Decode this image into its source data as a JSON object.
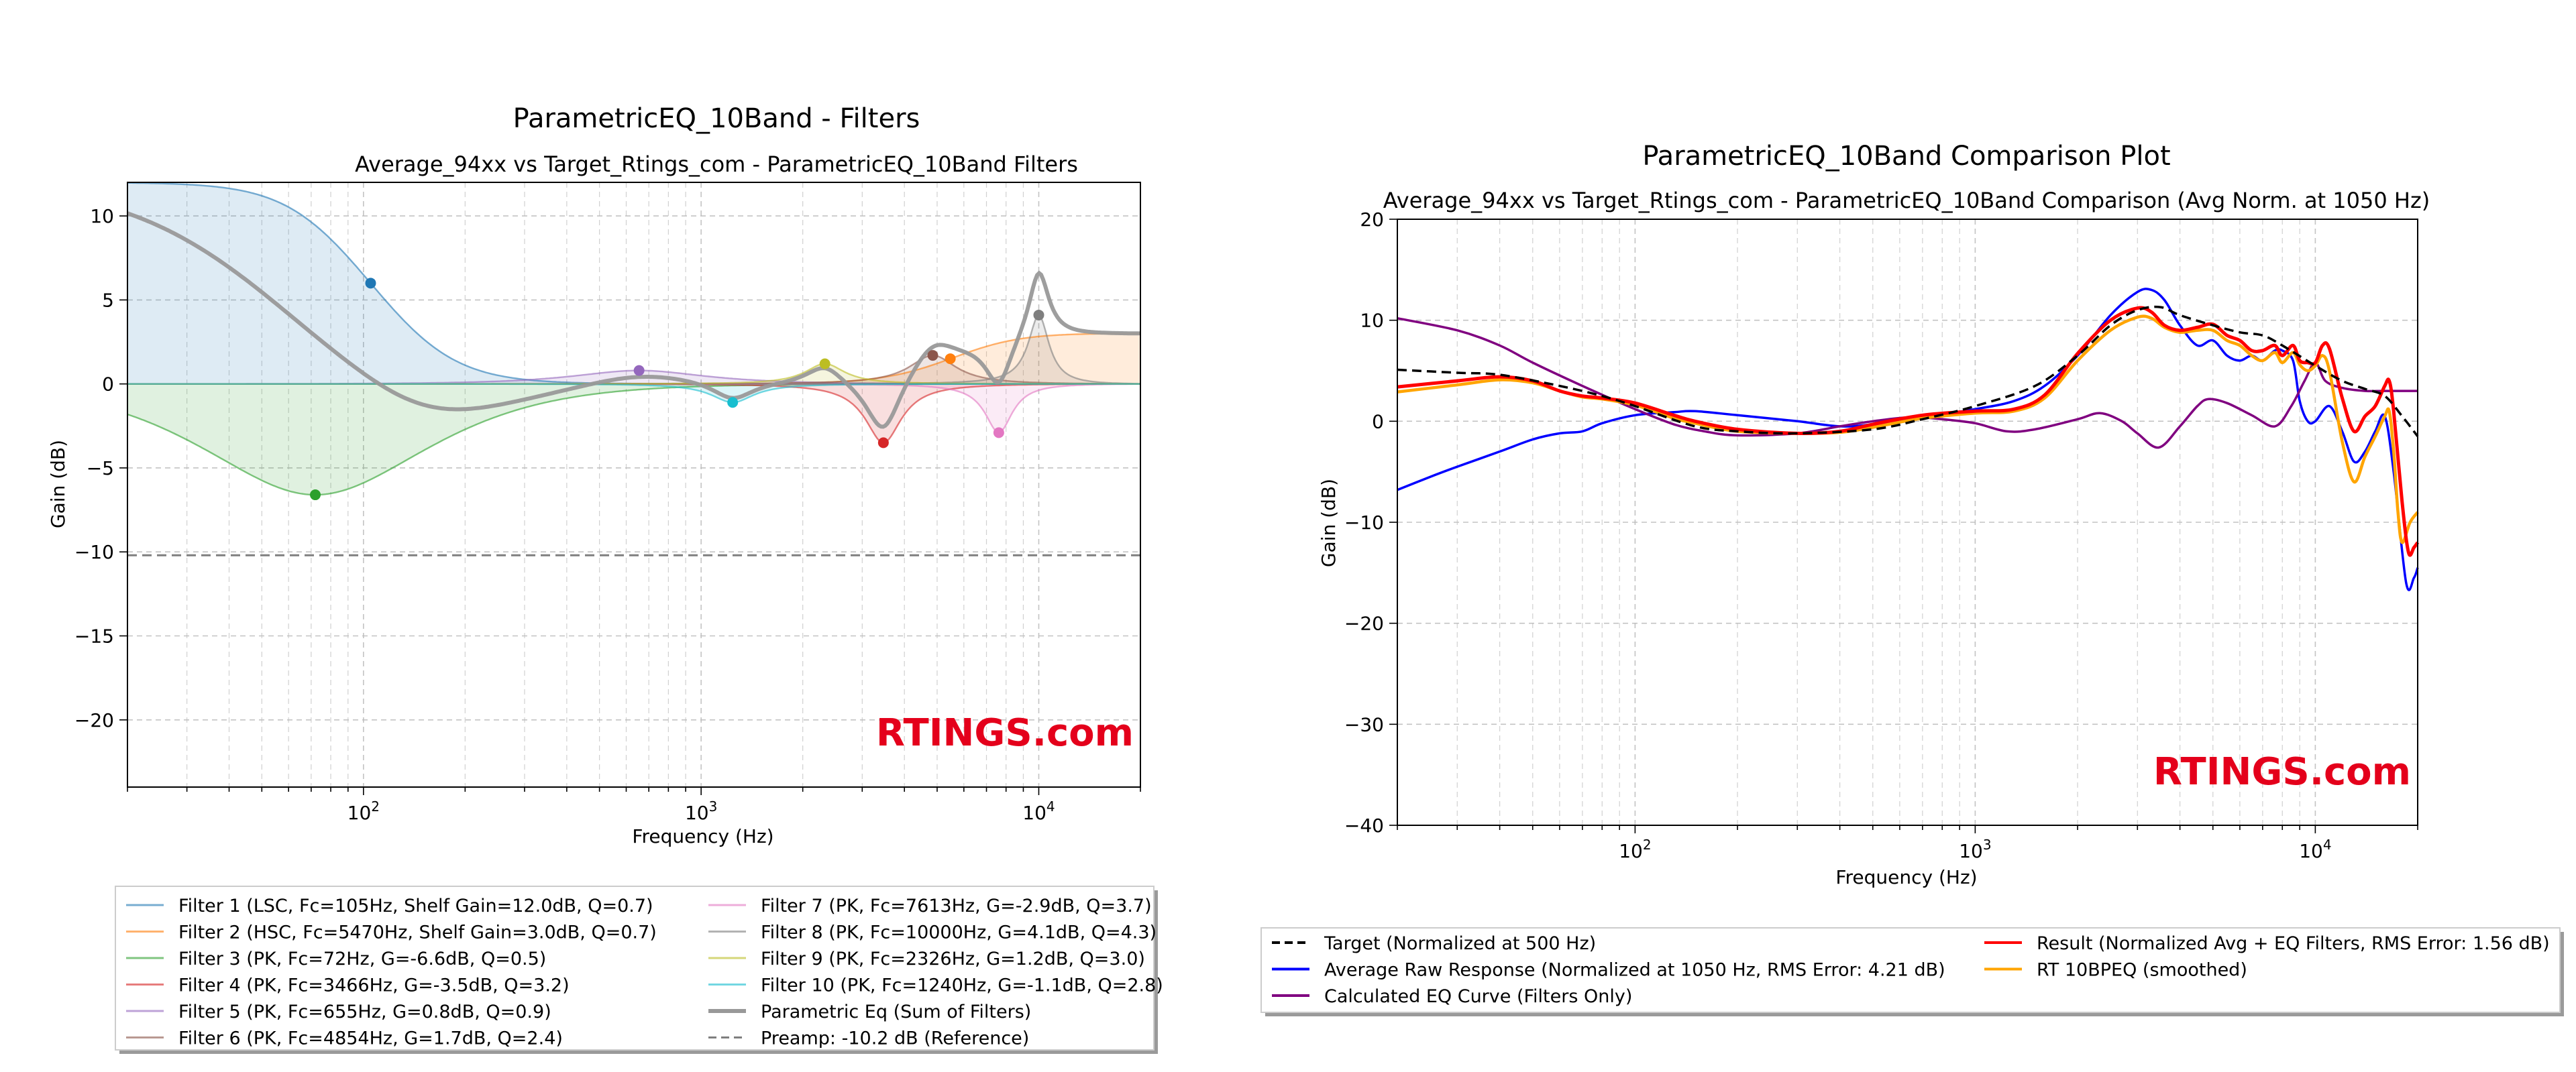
{
  "chart_data": [
    {
      "type": "line",
      "figure_title": "ParametricEQ_10Band - Filters",
      "title": "Average_94xx vs Target_Rtings_com - ParametricEQ_10Band Filters",
      "xlabel": "Frequency (Hz)",
      "ylabel": "Gain (dB)",
      "x_scale": "log",
      "xlim": [
        20,
        20000
      ],
      "ylim": [
        -24,
        12
      ],
      "yticks": [
        10,
        5,
        0,
        -5,
        -10,
        -15,
        -20
      ],
      "xticks": [
        100,
        1000,
        10000
      ],
      "grid": true,
      "watermark": "RTINGS.com",
      "legend_position": "below",
      "legend": [
        {
          "label": "Filter 1 (LSC, Fc=105Hz, Shelf Gain=12.0dB, Q=0.7)",
          "color": "#1f77b4"
        },
        {
          "label": "Filter 2 (HSC, Fc=5470Hz, Shelf Gain=3.0dB, Q=0.7)",
          "color": "#ff7f0e"
        },
        {
          "label": "Filter 3 (PK, Fc=72Hz, G=-6.6dB, Q=0.5)",
          "color": "#2ca02c"
        },
        {
          "label": "Filter 4 (PK, Fc=3466Hz, G=-3.5dB, Q=3.2)",
          "color": "#d62728"
        },
        {
          "label": "Filter 5 (PK, Fc=655Hz, G=0.8dB, Q=0.9)",
          "color": "#9467bd"
        },
        {
          "label": "Filter 6 (PK, Fc=4854Hz, G=1.7dB, Q=2.4)",
          "color": "#8c564b"
        },
        {
          "label": "Filter 7 (PK, Fc=7613Hz, G=-2.9dB, Q=3.7)",
          "color": "#e377c2"
        },
        {
          "label": "Filter 8 (PK, Fc=10000Hz, G=4.1dB, Q=4.3)",
          "color": "#7f7f7f"
        },
        {
          "label": "Filter 9 (PK, Fc=2326Hz, G=1.2dB, Q=3.0)",
          "color": "#bcbd22"
        },
        {
          "label": "Filter 10 (PK, Fc=1240Hz, G=-1.1dB, Q=2.8)",
          "color": "#17becf"
        },
        {
          "label": "Parametric Eq (Sum of Filters)",
          "color": "#999999"
        },
        {
          "label": "Preamp: -10.2 dB (Reference)",
          "color": "#7f7f7f"
        }
      ],
      "filters": [
        {
          "type": "LSC",
          "fc": 105,
          "gain": 12.0,
          "q": 0.7,
          "color": "#1f77b4"
        },
        {
          "type": "HSC",
          "fc": 5470,
          "gain": 3.0,
          "q": 0.7,
          "color": "#ff7f0e"
        },
        {
          "type": "PK",
          "fc": 72,
          "gain": -6.6,
          "q": 0.5,
          "color": "#2ca02c"
        },
        {
          "type": "PK",
          "fc": 3466,
          "gain": -3.5,
          "q": 3.2,
          "color": "#d62728"
        },
        {
          "type": "PK",
          "fc": 655,
          "gain": 0.8,
          "q": 0.9,
          "color": "#9467bd"
        },
        {
          "type": "PK",
          "fc": 4854,
          "gain": 1.7,
          "q": 2.4,
          "color": "#8c564b"
        },
        {
          "type": "PK",
          "fc": 7613,
          "gain": -2.9,
          "q": 3.7,
          "color": "#e377c2"
        },
        {
          "type": "PK",
          "fc": 10000,
          "gain": 4.1,
          "q": 4.3,
          "color": "#7f7f7f"
        },
        {
          "type": "PK",
          "fc": 2326,
          "gain": 1.2,
          "q": 3.0,
          "color": "#bcbd22"
        },
        {
          "type": "PK",
          "fc": 1240,
          "gain": -1.1,
          "q": 2.8,
          "color": "#17becf"
        }
      ],
      "preamp_db": -10.2
    },
    {
      "type": "line",
      "figure_title": "ParametricEQ_10Band Comparison Plot",
      "title": "Average_94xx vs Target_Rtings_com - ParametricEQ_10Band Comparison (Avg Norm. at 1050 Hz)",
      "xlabel": "Frequency (Hz)",
      "ylabel": "Gain (dB)",
      "x_scale": "log",
      "xlim": [
        20,
        20000
      ],
      "ylim": [
        -40,
        20
      ],
      "yticks": [
        20,
        10,
        0,
        -10,
        -20,
        -30,
        -40
      ],
      "xticks": [
        100,
        1000,
        10000
      ],
      "grid": true,
      "watermark": "RTINGS.com",
      "legend_position": "below",
      "legend": [
        {
          "label": "Target (Normalized at 500 Hz)",
          "color": "#000000",
          "dash": true
        },
        {
          "label": "Average Raw Response (Normalized at 1050 Hz, RMS Error: 4.21 dB)",
          "color": "#0000ff"
        },
        {
          "label": "Calculated EQ Curve (Filters Only)",
          "color": "#800080"
        },
        {
          "label": "Result (Normalized Avg + EQ Filters, RMS Error: 1.56 dB)",
          "color": "#ff0000"
        },
        {
          "label": "RT 10BPEQ (smoothed)",
          "color": "#ffa500"
        }
      ],
      "series": [
        {
          "name": "Target (Normalized at 500 Hz)",
          "color": "#000000",
          "dash": true,
          "points": [
            [
              20,
              5.1
            ],
            [
              30,
              4.8
            ],
            [
              40,
              4.6
            ],
            [
              60,
              3.5
            ],
            [
              80,
              2.5
            ],
            [
              100,
              1.5
            ],
            [
              150,
              -0.5
            ],
            [
              200,
              -1.0
            ],
            [
              300,
              -1.2
            ],
            [
              500,
              -0.8
            ],
            [
              700,
              0.2
            ],
            [
              1000,
              1.5
            ],
            [
              1500,
              3.5
            ],
            [
              2000,
              6.5
            ],
            [
              2500,
              9.5
            ],
            [
              3000,
              11.0
            ],
            [
              3500,
              11.3
            ],
            [
              4000,
              10.5
            ],
            [
              5000,
              9.5
            ],
            [
              6000,
              8.8
            ],
            [
              7000,
              8.5
            ],
            [
              8000,
              7.5
            ],
            [
              10000,
              5.5
            ],
            [
              12000,
              4.0
            ],
            [
              14000,
              3.2
            ],
            [
              16000,
              2.5
            ],
            [
              18000,
              0.5
            ],
            [
              20000,
              -1.5
            ]
          ]
        },
        {
          "name": "Average Raw Response (Normalized at 1050 Hz, RMS Error: 4.21 dB)",
          "color": "#0000ff",
          "points": [
            [
              20,
              -6.8
            ],
            [
              25,
              -5.5
            ],
            [
              30,
              -4.5
            ],
            [
              40,
              -3.0
            ],
            [
              50,
              -1.8
            ],
            [
              60,
              -1.2
            ],
            [
              70,
              -1.0
            ],
            [
              80,
              -0.2
            ],
            [
              100,
              0.6
            ],
            [
              130,
              0.9
            ],
            [
              150,
              1.0
            ],
            [
              200,
              0.6
            ],
            [
              300,
              0.0
            ],
            [
              400,
              -0.5
            ],
            [
              500,
              -0.3
            ],
            [
              700,
              0.4
            ],
            [
              1000,
              1.2
            ],
            [
              1300,
              2.0
            ],
            [
              1600,
              3.5
            ],
            [
              2000,
              6.5
            ],
            [
              2500,
              10.5
            ],
            [
              3000,
              12.8
            ],
            [
              3300,
              13.0
            ],
            [
              3600,
              12.0
            ],
            [
              4000,
              9.5
            ],
            [
              4500,
              7.5
            ],
            [
              5000,
              8.0
            ],
            [
              5500,
              6.5
            ],
            [
              6000,
              6.0
            ],
            [
              6500,
              6.5
            ],
            [
              7000,
              6.0
            ],
            [
              7600,
              7.0
            ],
            [
              8000,
              7.0
            ],
            [
              8600,
              6.0
            ],
            [
              9000,
              2.0
            ],
            [
              9500,
              0.0
            ],
            [
              10000,
              0.0
            ],
            [
              11000,
              1.5
            ],
            [
              12000,
              -1.0
            ],
            [
              13000,
              -4.0
            ],
            [
              14000,
              -3.0
            ],
            [
              15000,
              -1.0
            ],
            [
              16000,
              0.5
            ],
            [
              17000,
              -5.0
            ],
            [
              18500,
              -16.0
            ],
            [
              19500,
              -15.5
            ],
            [
              20000,
              -14.5
            ]
          ]
        },
        {
          "name": "Calculated EQ Curve (Filters Only)",
          "color": "#800080",
          "points": [
            [
              20,
              10.2
            ],
            [
              30,
              9.0
            ],
            [
              40,
              7.5
            ],
            [
              50,
              5.8
            ],
            [
              70,
              3.5
            ],
            [
              100,
              1.2
            ],
            [
              130,
              -0.3
            ],
            [
              160,
              -1.0
            ],
            [
              200,
              -1.4
            ],
            [
              300,
              -1.2
            ],
            [
              400,
              -0.5
            ],
            [
              500,
              0.0
            ],
            [
              650,
              0.4
            ],
            [
              800,
              0.2
            ],
            [
              1000,
              -0.2
            ],
            [
              1240,
              -1.0
            ],
            [
              1500,
              -0.8
            ],
            [
              2000,
              0.2
            ],
            [
              2326,
              0.8
            ],
            [
              2700,
              0.0
            ],
            [
              3000,
              -1.2
            ],
            [
              3466,
              -2.6
            ],
            [
              4000,
              -0.5
            ],
            [
              4500,
              1.5
            ],
            [
              4854,
              2.2
            ],
            [
              5500,
              1.8
            ],
            [
              6500,
              0.6
            ],
            [
              7613,
              -0.5
            ],
            [
              8500,
              1.5
            ],
            [
              9300,
              4.0
            ],
            [
              10000,
              5.8
            ],
            [
              10700,
              4.0
            ],
            [
              12000,
              3.3
            ],
            [
              14000,
              3.0
            ],
            [
              16000,
              3.0
            ],
            [
              20000,
              3.0
            ]
          ]
        },
        {
          "name": "Result (Normalized Avg + EQ Filters, RMS Error: 1.56 dB)",
          "color": "#ff0000",
          "points": [
            [
              20,
              3.4
            ],
            [
              30,
              4.0
            ],
            [
              40,
              4.4
            ],
            [
              50,
              4.0
            ],
            [
              60,
              3.0
            ],
            [
              70,
              2.5
            ],
            [
              80,
              2.3
            ],
            [
              100,
              1.8
            ],
            [
              130,
              0.6
            ],
            [
              150,
              0.0
            ],
            [
              200,
              -0.8
            ],
            [
              300,
              -1.2
            ],
            [
              400,
              -1.0
            ],
            [
              500,
              -0.3
            ],
            [
              700,
              0.6
            ],
            [
              1000,
              1.0
            ],
            [
              1300,
              1.2
            ],
            [
              1600,
              2.6
            ],
            [
              2000,
              6.7
            ],
            [
              2500,
              10.0
            ],
            [
              3000,
              11.2
            ],
            [
              3300,
              10.8
            ],
            [
              3600,
              9.5
            ],
            [
              4000,
              9.0
            ],
            [
              4500,
              9.3
            ],
            [
              5000,
              9.6
            ],
            [
              5500,
              8.5
            ],
            [
              6000,
              8.0
            ],
            [
              6500,
              7.0
            ],
            [
              7000,
              7.0
            ],
            [
              7600,
              7.5
            ],
            [
              8000,
              6.5
            ],
            [
              8600,
              7.5
            ],
            [
              9000,
              6.0
            ],
            [
              9500,
              5.8
            ],
            [
              10000,
              5.8
            ],
            [
              10500,
              7.5
            ],
            [
              11000,
              7.2
            ],
            [
              12000,
              2.3
            ],
            [
              13000,
              -1.0
            ],
            [
              14000,
              0.5
            ],
            [
              15000,
              1.5
            ],
            [
              16000,
              3.5
            ],
            [
              16500,
              4.0
            ],
            [
              17000,
              1.0
            ],
            [
              18000,
              -8.0
            ],
            [
              18800,
              -13.0
            ],
            [
              19500,
              -12.5
            ],
            [
              20000,
              -12.0
            ]
          ]
        },
        {
          "name": "RT 10BPEQ (smoothed)",
          "color": "#ffa500",
          "points": [
            [
              20,
              2.9
            ],
            [
              30,
              3.6
            ],
            [
              40,
              4.1
            ],
            [
              50,
              3.8
            ],
            [
              60,
              3.0
            ],
            [
              70,
              2.4
            ],
            [
              80,
              2.2
            ],
            [
              100,
              1.6
            ],
            [
              130,
              0.3
            ],
            [
              150,
              -0.2
            ],
            [
              200,
              -1.0
            ],
            [
              300,
              -1.2
            ],
            [
              400,
              -1.1
            ],
            [
              500,
              -0.6
            ],
            [
              700,
              0.3
            ],
            [
              1000,
              0.8
            ],
            [
              1300,
              1.0
            ],
            [
              1600,
              2.3
            ],
            [
              2000,
              6.0
            ],
            [
              2500,
              9.0
            ],
            [
              3000,
              10.3
            ],
            [
              3300,
              10.2
            ],
            [
              3600,
              9.3
            ],
            [
              4000,
              8.8
            ],
            [
              4500,
              9.0
            ],
            [
              5000,
              9.0
            ],
            [
              5500,
              8.0
            ],
            [
              6000,
              7.5
            ],
            [
              6500,
              6.5
            ],
            [
              7000,
              6.0
            ],
            [
              7600,
              6.8
            ],
            [
              8000,
              5.8
            ],
            [
              8600,
              6.8
            ],
            [
              9000,
              5.6
            ],
            [
              9500,
              5.0
            ],
            [
              10000,
              5.5
            ],
            [
              10500,
              6.5
            ],
            [
              11000,
              5.0
            ],
            [
              12000,
              -2.0
            ],
            [
              13000,
              -6.0
            ],
            [
              14000,
              -3.5
            ],
            [
              15000,
              -1.5
            ],
            [
              16000,
              0.5
            ],
            [
              16500,
              1.0
            ],
            [
              17000,
              -3.0
            ],
            [
              17500,
              -9.0
            ],
            [
              18000,
              -12.0
            ],
            [
              19000,
              -10.0
            ],
            [
              20000,
              -9.0
            ]
          ]
        }
      ]
    }
  ]
}
